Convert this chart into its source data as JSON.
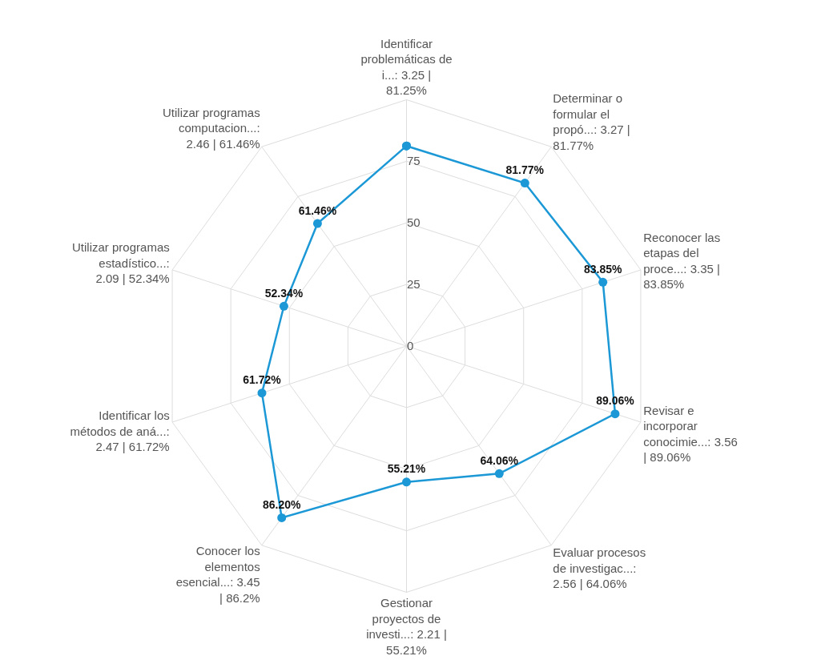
{
  "chart_data": {
    "type": "radar",
    "categories": [
      "Identificar problemáticas de i...: 3.25 | 81.25%",
      "Determinar o formular el propó...: 3.27 | 81.77%",
      "Reconocer las etapas del proce...: 3.35 | 83.85%",
      "Revisar e incorporar conocimie...: 3.56 | 89.06%",
      "Evaluar procesos de investigac...: 2.56 | 64.06%",
      "Gestionar proyectos de investi...: 2.21 | 55.21%",
      "Conocer los elementos esencial...: 3.45 | 86.2%",
      "Identificar los métodos de aná...: 2.47 | 61.72%",
      "Utilizar programas estadístico...: 2.09 | 52.34%",
      "Utilizar programas computacion...: 2.46 | 61.46%"
    ],
    "series": [
      {
        "color": "#1b98d5",
        "values": [
          81.25,
          81.77,
          83.85,
          89.06,
          64.06,
          55.21,
          86.2,
          61.72,
          52.34,
          61.46
        ],
        "value_labels": [
          null,
          "81.77%",
          "83.85%",
          "89.06%",
          "64.06%",
          "55.21%",
          "86.20%",
          "61.72%",
          "52.34%",
          "61.46%"
        ]
      }
    ],
    "ylim": [
      0,
      100
    ],
    "yticks": [
      0,
      25,
      50,
      75
    ],
    "grid": true,
    "marker": "circle",
    "line_style": "solid"
  }
}
